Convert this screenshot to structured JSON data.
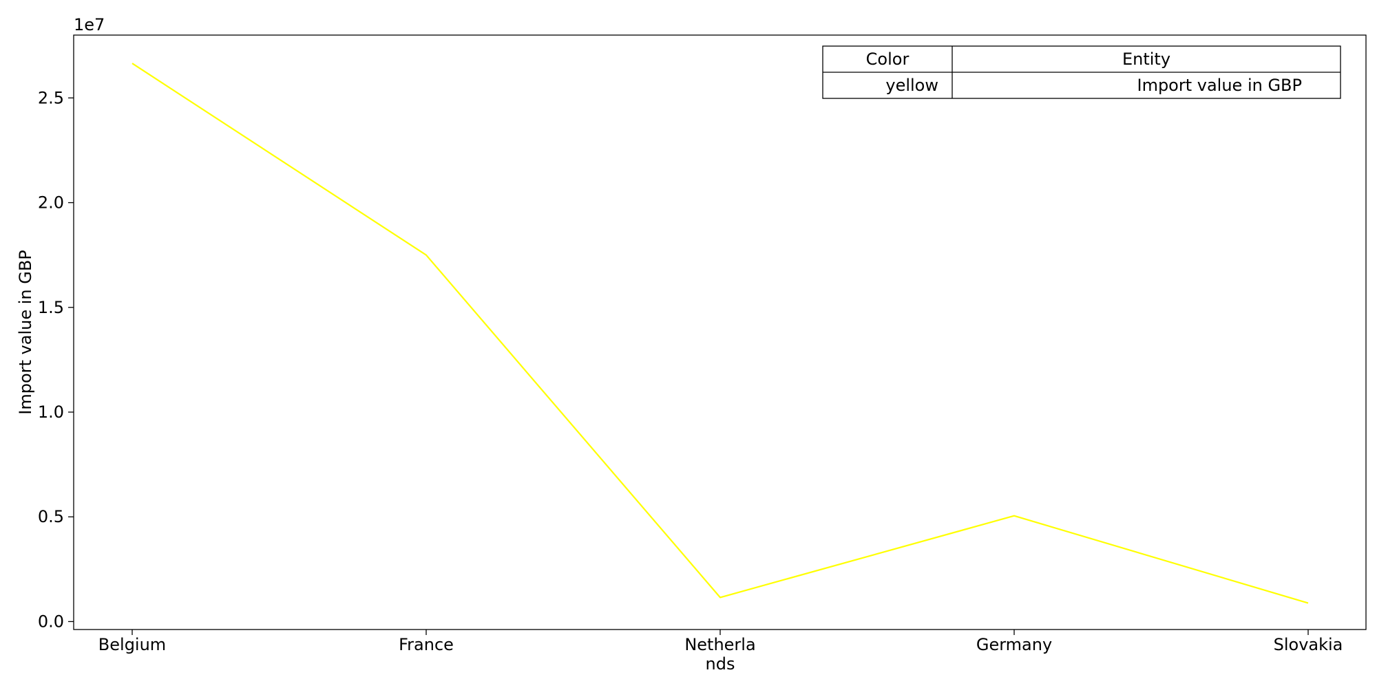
{
  "chart_data": {
    "type": "line",
    "categories": [
      "Belgium",
      "France",
      "Netherlands",
      "Germany",
      "Slovakia"
    ],
    "category_display": [
      "Belgium",
      "France",
      "Netherla\nnds",
      "Germany",
      "Slovakia"
    ],
    "series": [
      {
        "name": "Import value in GBP",
        "color": "#ffff00",
        "values": [
          26650000,
          17500000,
          1150000,
          5050000,
          880000
        ]
      }
    ],
    "title": "",
    "xlabel": "",
    "ylabel": "Import value in GBP",
    "offset_text": "1e7",
    "ylim": [
      -380000,
      28000000
    ],
    "yticks": [
      0,
      5000000,
      10000000,
      15000000,
      20000000,
      25000000
    ],
    "ytick_labels": [
      "0.0",
      "0.5",
      "1.0",
      "1.5",
      "2.0",
      "2.5"
    ],
    "grid": false,
    "legend": {
      "placement": "top-right",
      "header": [
        "Color",
        "Entity"
      ],
      "rows": [
        [
          "yellow",
          "Import value in GBP"
        ]
      ]
    }
  }
}
